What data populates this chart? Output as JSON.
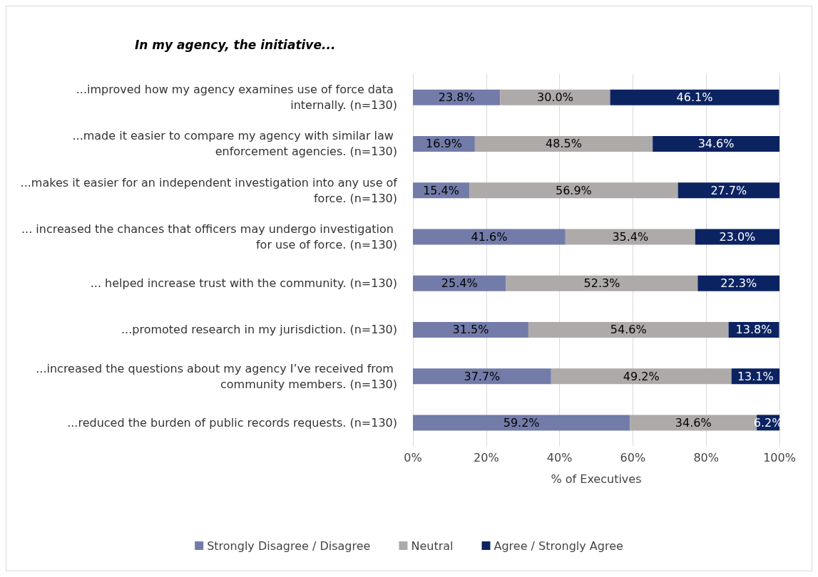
{
  "chart_data": {
    "type": "bar",
    "orientation": "horizontal",
    "stacked": true,
    "title": "In my agency, the initiative...",
    "xlabel": "% of Executives",
    "categories": [
      "...improved how my agency examines use of force data internally. (n=130)",
      "...made it easier to compare my agency with similar law enforcement agencies. (n=130)",
      "...makes it easier for an independent investigation into any use of force. (n=130)",
      "... increased the chances that officers may undergo investigation for use of force. (n=130)",
      "... helped increase trust with the community. (n=130)",
      "...promoted research in my jurisdiction. (n=130)",
      "...increased the questions about my agency I’ve received from community members. (n=130)",
      "...reduced the burden of public records requests. (n=130)"
    ],
    "series": [
      {
        "name": "Strongly Disagree / Disagree",
        "color": "#737ba9",
        "values": [
          23.8,
          16.9,
          15.4,
          41.6,
          25.4,
          31.5,
          37.7,
          59.2
        ],
        "value_labels": [
          "23.8%",
          "16.9%",
          "15.4%",
          "41.6%",
          "25.4%",
          "31.5%",
          "37.7%",
          "59.2%"
        ]
      },
      {
        "name": "Neutral",
        "color": "#aeaaa9",
        "values": [
          30.0,
          48.5,
          56.9,
          35.4,
          52.3,
          54.6,
          49.2,
          34.6
        ],
        "value_labels": [
          "30.0%",
          "48.5%",
          "56.9%",
          "35.4%",
          "52.3%",
          "54.6%",
          "49.2%",
          "34.6%"
        ]
      },
      {
        "name": "Agree / Strongly Agree",
        "color": "#0c2362",
        "values": [
          46.1,
          34.6,
          27.7,
          23.0,
          22.3,
          13.8,
          13.1,
          6.2
        ],
        "value_labels": [
          "46.1%",
          "34.6%",
          "27.7%",
          "23.0%",
          "22.3%",
          "13.8%",
          "13.1%",
          "6.2%"
        ]
      }
    ],
    "xlim": [
      0,
      100
    ],
    "xticks": [
      {
        "value": 0,
        "label": "0%"
      },
      {
        "value": 20,
        "label": "20%"
      },
      {
        "value": 40,
        "label": "40%"
      },
      {
        "value": 60,
        "label": "60%"
      },
      {
        "value": 80,
        "label": "80%"
      },
      {
        "value": 100,
        "label": "100%"
      }
    ],
    "grid": "x",
    "legend": "bottom"
  }
}
